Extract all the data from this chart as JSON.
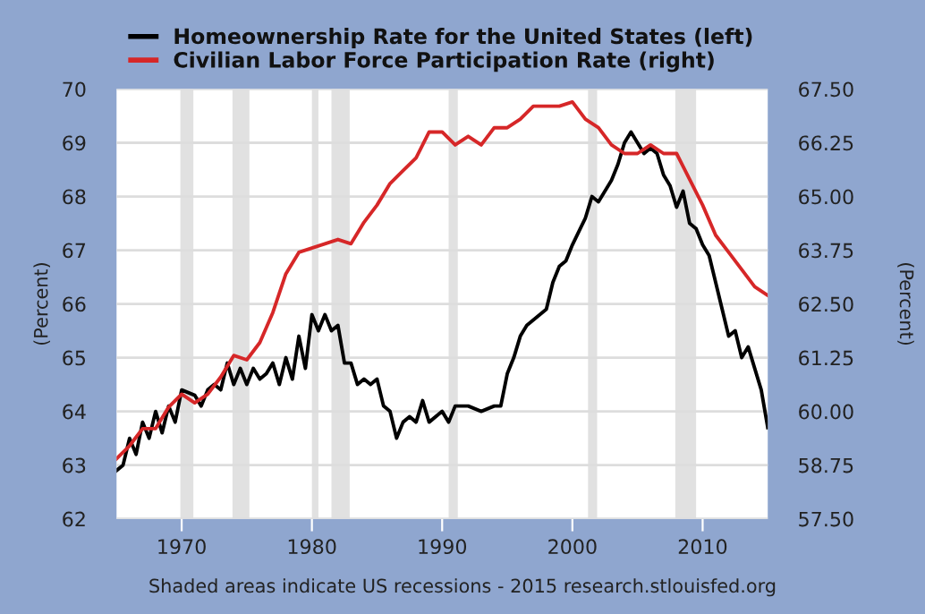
{
  "chart_data": {
    "type": "line",
    "ylabel": "(Percent)",
    "y2label": "(Percent)",
    "annotations": [
      "Shaded areas indicate US recessions - 2015 research.stlouisfed.org"
    ],
    "xlim": [
      1965,
      2015
    ],
    "xticks": [
      1970,
      1980,
      1990,
      2000,
      2010
    ],
    "ylim": [
      62,
      70
    ],
    "yticks": [
      62,
      63,
      64,
      65,
      66,
      67,
      68,
      69,
      70
    ],
    "y2lim": [
      57.5,
      67.5
    ],
    "y2ticks": [
      {
        "value": 57.5,
        "label": "57.50"
      },
      {
        "value": 58.75,
        "label": "58.75"
      },
      {
        "value": 60,
        "label": "60.00"
      },
      {
        "value": 61.25,
        "label": "61.25"
      },
      {
        "value": 62.5,
        "label": "62.50"
      },
      {
        "value": 63.75,
        "label": "63.75"
      },
      {
        "value": 65,
        "label": "65.00"
      },
      {
        "value": 66.25,
        "label": "66.25"
      },
      {
        "value": 67.5,
        "label": "67.50"
      }
    ],
    "grid": "y",
    "legend": "top",
    "bands": [
      {
        "axis": "x",
        "from": 1969.9,
        "to": 1970.9,
        "color": "#e1e1e1"
      },
      {
        "axis": "x",
        "from": 1973.9,
        "to": 1975.2,
        "color": "#e1e1e1"
      },
      {
        "axis": "x",
        "from": 1980.0,
        "to": 1980.5,
        "color": "#e1e1e1"
      },
      {
        "axis": "x",
        "from": 1981.5,
        "to": 1982.9,
        "color": "#e1e1e1"
      },
      {
        "axis": "x",
        "from": 1990.5,
        "to": 1991.2,
        "color": "#e1e1e1"
      },
      {
        "axis": "x",
        "from": 2001.2,
        "to": 2001.9,
        "color": "#e1e1e1"
      },
      {
        "axis": "x",
        "from": 2007.9,
        "to": 2009.5,
        "color": "#e1e1e1"
      }
    ],
    "series": [
      {
        "name": "Homeownership Rate for the United States (left)",
        "color": "#000000",
        "x": [
          1965,
          1965.5,
          1966,
          1966.5,
          1967,
          1967.5,
          1968,
          1968.5,
          1969,
          1969.5,
          1970,
          1971,
          1971.5,
          1972,
          1972.5,
          1973,
          1973.5,
          1974,
          1974.5,
          1975,
          1975.5,
          1976,
          1976.5,
          1977,
          1977.5,
          1978,
          1978.5,
          1979,
          1979.5,
          1980,
          1980.5,
          1981,
          1981.5,
          1982,
          1982.5,
          1983,
          1983.5,
          1984,
          1984.5,
          1985,
          1985.5,
          1986,
          1986.5,
          1987,
          1987.5,
          1988,
          1988.5,
          1989,
          1990,
          1990.5,
          1991,
          1992,
          1993,
          1994,
          1994.5,
          1995,
          1995.5,
          1996,
          1996.5,
          1997,
          1998,
          1998.5,
          1999,
          1999.5,
          2000,
          2001,
          2001.5,
          2002,
          2003,
          2003.5,
          2004,
          2004.5,
          2005,
          2005.5,
          2006,
          2006.5,
          2007,
          2007.5,
          2008,
          2008.5,
          2009,
          2009.5,
          2010,
          2010.5,
          2011,
          2011.5,
          2012,
          2012.5,
          2013,
          2013.5,
          2014,
          2014.5,
          2015
        ],
        "values": [
          62.9,
          63.0,
          63.5,
          63.2,
          63.8,
          63.5,
          64.0,
          63.6,
          64.1,
          63.8,
          64.4,
          64.3,
          64.1,
          64.4,
          64.5,
          64.4,
          64.9,
          64.5,
          64.8,
          64.5,
          64.8,
          64.6,
          64.7,
          64.9,
          64.5,
          65.0,
          64.6,
          65.4,
          64.8,
          65.8,
          65.5,
          65.8,
          65.5,
          65.6,
          64.9,
          64.9,
          64.5,
          64.6,
          64.5,
          64.6,
          64.1,
          64.0,
          63.5,
          63.8,
          63.9,
          63.8,
          64.2,
          63.8,
          64.0,
          63.8,
          64.1,
          64.1,
          64.0,
          64.1,
          64.1,
          64.7,
          65.0,
          65.4,
          65.6,
          65.7,
          65.9,
          66.4,
          66.7,
          66.8,
          67.1,
          67.6,
          68.0,
          67.9,
          68.3,
          68.6,
          69.0,
          69.2,
          69.0,
          68.8,
          68.9,
          68.8,
          68.4,
          68.2,
          67.8,
          68.1,
          67.5,
          67.4,
          67.1,
          66.9,
          66.4,
          65.9,
          65.4,
          65.5,
          65.0,
          65.2,
          64.8,
          64.4,
          63.7
        ]
      },
      {
        "name": "Civilian Labor Force Participation Rate (right)",
        "color": "#d62728",
        "axis": "y2",
        "x": [
          1965,
          1966,
          1967,
          1968,
          1969,
          1970,
          1971,
          1972,
          1973,
          1974,
          1975,
          1976,
          1977,
          1978,
          1979,
          1980,
          1981,
          1982,
          1983,
          1984,
          1985,
          1986,
          1987,
          1988,
          1989,
          1990,
          1991,
          1992,
          1993,
          1994,
          1995,
          1996,
          1997,
          1998,
          1999,
          2000,
          2001,
          2002,
          2003,
          2004,
          2005,
          2006,
          2007,
          2008,
          2009,
          2010,
          2011,
          2012,
          2013,
          2014,
          2015
        ],
        "values": [
          58.9,
          59.2,
          59.6,
          59.6,
          60.1,
          60.4,
          60.2,
          60.4,
          60.8,
          61.3,
          61.2,
          61.6,
          62.3,
          63.2,
          63.7,
          63.8,
          63.9,
          64.0,
          63.9,
          64.4,
          64.8,
          65.3,
          65.6,
          65.9,
          66.5,
          66.5,
          66.2,
          66.4,
          66.2,
          66.6,
          66.6,
          66.8,
          67.1,
          67.1,
          67.1,
          67.2,
          66.8,
          66.6,
          66.2,
          66.0,
          66.0,
          66.2,
          66.0,
          66.0,
          65.4,
          64.8,
          64.1,
          63.7,
          63.3,
          62.9,
          62.7
        ]
      }
    ]
  }
}
